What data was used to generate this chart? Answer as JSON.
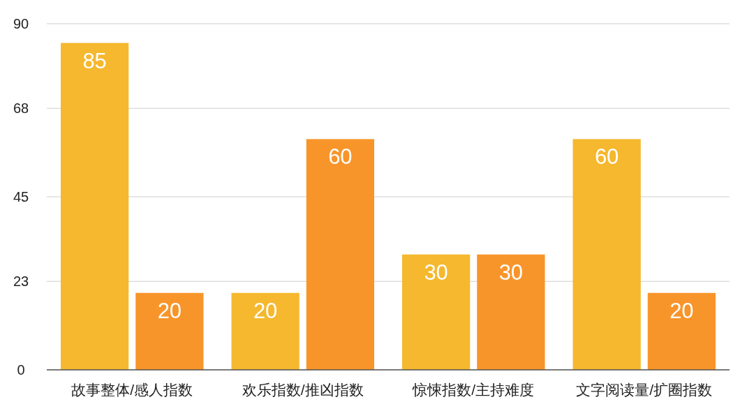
{
  "chart_data": {
    "type": "bar",
    "categories": [
      "故事整体/感人指数",
      "欢乐指数/推凶指数",
      "惊悚指数/主持难度",
      "文字阅读量/扩圈指数"
    ],
    "series": [
      {
        "color": "#f5b82e",
        "values": [
          85,
          20,
          30,
          60
        ]
      },
      {
        "color": "#f8952a",
        "values": [
          20,
          60,
          30,
          20
        ]
      }
    ],
    "ylim": [
      0,
      90
    ],
    "yticks": [
      0,
      23,
      45,
      68,
      90
    ],
    "grid": "y",
    "data_labels": true
  }
}
